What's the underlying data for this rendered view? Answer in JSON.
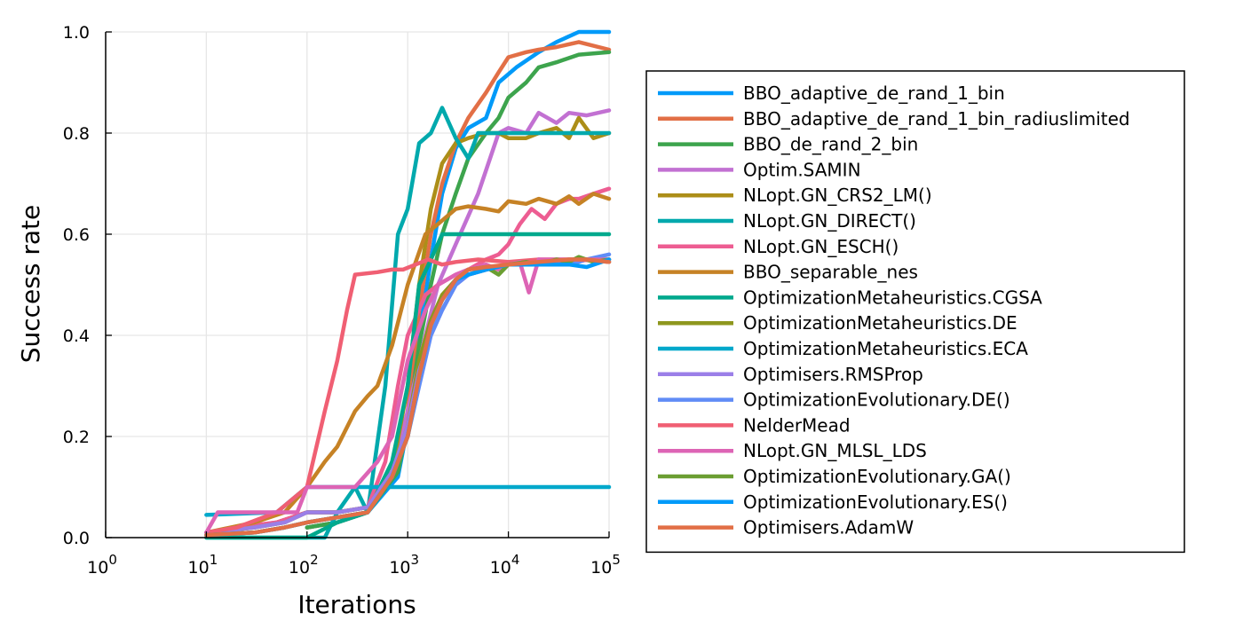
{
  "chart_data": {
    "type": "line",
    "xlabel": "Iterations",
    "ylabel": "Success rate",
    "x_scale": "log10",
    "xlim": [
      1,
      100000
    ],
    "ylim": [
      0,
      1
    ],
    "x_ticks": [
      {
        "base": "10",
        "exp": "0"
      },
      {
        "base": "10",
        "exp": "1"
      },
      {
        "base": "10",
        "exp": "2"
      },
      {
        "base": "10",
        "exp": "3"
      },
      {
        "base": "10",
        "exp": "4"
      },
      {
        "base": "10",
        "exp": "5"
      }
    ],
    "y_ticks": [
      "0.0",
      "0.2",
      "0.4",
      "0.6",
      "0.8",
      "1.0"
    ],
    "grid": true,
    "legend_position": "right",
    "series": [
      {
        "name": "BBO_adaptive_de_rand_1_bin",
        "color": "#009af9",
        "x": [
          100,
          200,
          400,
          800,
          1000,
          1300,
          1700,
          2200,
          3000,
          4000,
          6000,
          8000,
          12000,
          20000,
          30000,
          50000,
          100000
        ],
        "y": [
          0.02,
          0.03,
          0.05,
          0.12,
          0.22,
          0.4,
          0.55,
          0.68,
          0.77,
          0.81,
          0.83,
          0.9,
          0.93,
          0.96,
          0.98,
          1.0,
          1.0
        ]
      },
      {
        "name": "BBO_adaptive_de_rand_1_bin_radiuslimited",
        "color": "#e26f46",
        "x": [
          100,
          200,
          400,
          800,
          1000,
          1300,
          1700,
          2200,
          3000,
          4000,
          6000,
          8000,
          10000,
          15000,
          20000,
          30000,
          50000,
          100000
        ],
        "y": [
          0.02,
          0.03,
          0.05,
          0.15,
          0.25,
          0.45,
          0.6,
          0.7,
          0.78,
          0.83,
          0.88,
          0.92,
          0.95,
          0.96,
          0.965,
          0.97,
          0.98,
          0.965
        ]
      },
      {
        "name": "BBO_de_rand_2_bin",
        "color": "#3da44d",
        "x": [
          100,
          200,
          400,
          800,
          1000,
          1300,
          1700,
          2200,
          3000,
          4000,
          6000,
          8000,
          10000,
          15000,
          20000,
          30000,
          50000,
          100000
        ],
        "y": [
          0.02,
          0.03,
          0.05,
          0.13,
          0.22,
          0.38,
          0.5,
          0.6,
          0.68,
          0.75,
          0.8,
          0.83,
          0.87,
          0.9,
          0.93,
          0.94,
          0.955,
          0.96
        ]
      },
      {
        "name": "Optim.SAMIN",
        "color": "#c271d2",
        "x": [
          10,
          20,
          50,
          100,
          200,
          400,
          700,
          1000,
          1500,
          2000,
          3000,
          5000,
          8000,
          10000,
          15000,
          20000,
          30000,
          40000,
          60000,
          100000
        ],
        "y": [
          0.01,
          0.02,
          0.03,
          0.05,
          0.05,
          0.06,
          0.13,
          0.25,
          0.4,
          0.5,
          0.58,
          0.68,
          0.8,
          0.81,
          0.8,
          0.84,
          0.82,
          0.84,
          0.835,
          0.845
        ]
      },
      {
        "name": "NLopt.GN_CRS2_LM()",
        "color": "#ac8e18",
        "x": [
          10,
          30,
          50,
          100,
          200,
          400,
          700,
          1000,
          1300,
          1700,
          2200,
          3000,
          4000,
          6000,
          8000,
          10000,
          15000,
          20000,
          30000,
          40000,
          50000,
          70000,
          100000
        ],
        "y": [
          0.01,
          0.02,
          0.03,
          0.05,
          0.05,
          0.06,
          0.13,
          0.3,
          0.5,
          0.65,
          0.74,
          0.78,
          0.79,
          0.8,
          0.8,
          0.79,
          0.79,
          0.8,
          0.81,
          0.79,
          0.83,
          0.79,
          0.8
        ]
      },
      {
        "name": "NLopt.GN_DIRECT()",
        "color": "#00a9ad",
        "x": [
          10,
          100,
          150,
          200,
          300,
          400,
          600,
          800,
          1000,
          1300,
          1700,
          2200,
          3000,
          4000,
          5000,
          7000,
          100000
        ],
        "y": [
          0,
          0,
          0,
          0.05,
          0.1,
          0.05,
          0.3,
          0.6,
          0.65,
          0.78,
          0.8,
          0.85,
          0.79,
          0.75,
          0.8,
          0.8,
          0.8
        ]
      },
      {
        "name": "NLopt.GN_ESCH()",
        "color": "#ed5d92",
        "x": [
          10,
          20,
          50,
          100,
          200,
          400,
          600,
          800,
          1000,
          1500,
          2000,
          3000,
          4000,
          6000,
          8000,
          10000,
          13000,
          17000,
          23000,
          30000,
          40000,
          50000,
          70000,
          100000
        ],
        "y": [
          0.01,
          0.02,
          0.03,
          0.05,
          0.05,
          0.06,
          0.15,
          0.3,
          0.4,
          0.48,
          0.5,
          0.52,
          0.53,
          0.55,
          0.56,
          0.58,
          0.62,
          0.65,
          0.63,
          0.66,
          0.67,
          0.67,
          0.68,
          0.69
        ]
      },
      {
        "name": "BBO_separable_nes",
        "color": "#c68225",
        "x": [
          10,
          30,
          60,
          100,
          150,
          200,
          300,
          400,
          500,
          700,
          1000,
          1500,
          2000,
          3000,
          4000,
          6000,
          8000,
          10000,
          15000,
          20000,
          30000,
          40000,
          50000,
          70000,
          100000
        ],
        "y": [
          0.01,
          0.03,
          0.05,
          0.1,
          0.15,
          0.18,
          0.25,
          0.28,
          0.3,
          0.38,
          0.5,
          0.6,
          0.62,
          0.65,
          0.655,
          0.65,
          0.645,
          0.665,
          0.66,
          0.67,
          0.66,
          0.675,
          0.66,
          0.68,
          0.67
        ]
      },
      {
        "name": "OptimizationMetaheuristics.CGSA",
        "color": "#00a98d",
        "x": [
          10,
          100,
          200,
          400,
          700,
          1000,
          1300,
          1700,
          2200,
          3000,
          100000
        ],
        "y": [
          0,
          0,
          0.03,
          0.05,
          0.15,
          0.3,
          0.5,
          0.55,
          0.6,
          0.6,
          0.6
        ]
      },
      {
        "name": "OptimizationMetaheuristics.DE",
        "color": "#8e971e",
        "x": [
          10,
          30,
          60,
          100,
          200,
          400,
          700,
          1000,
          1300,
          1700,
          2200,
          3000,
          4000,
          6000,
          10000,
          20000,
          40000,
          60000,
          100000
        ],
        "y": [
          0.01,
          0.02,
          0.03,
          0.05,
          0.05,
          0.06,
          0.13,
          0.22,
          0.35,
          0.43,
          0.48,
          0.51,
          0.52,
          0.53,
          0.54,
          0.545,
          0.55,
          0.55,
          0.545
        ]
      },
      {
        "name": "OptimizationMetaheuristics.ECA",
        "color": "#00a8cb",
        "x": [
          10,
          50,
          100,
          200,
          300,
          400,
          500,
          600,
          1000,
          100000
        ],
        "y": [
          0.045,
          0.05,
          0.1,
          0.1,
          0.1,
          0.1,
          0.1,
          0.1,
          0.1,
          0.1
        ]
      },
      {
        "name": "Optimisers.RMSProp",
        "color": "#9b7fe8",
        "x": [
          10,
          30,
          60,
          100,
          200,
          400,
          700,
          1000,
          1300,
          1700,
          2200,
          3000,
          4000,
          6000,
          10000,
          20000,
          40000,
          60000,
          100000
        ],
        "y": [
          0.01,
          0.02,
          0.03,
          0.05,
          0.05,
          0.06,
          0.13,
          0.22,
          0.33,
          0.4,
          0.45,
          0.5,
          0.52,
          0.53,
          0.54,
          0.55,
          0.54,
          0.55,
          0.55
        ]
      },
      {
        "name": "OptimizationEvolutionary.DE()",
        "color": "#608cf6",
        "x": [
          10,
          30,
          60,
          100,
          200,
          400,
          700,
          1000,
          1300,
          1700,
          2200,
          3000,
          4000,
          6000,
          10000,
          20000,
          40000,
          60000,
          100000
        ],
        "y": [
          0.005,
          0.01,
          0.02,
          0.03,
          0.04,
          0.05,
          0.12,
          0.2,
          0.3,
          0.4,
          0.45,
          0.5,
          0.52,
          0.53,
          0.54,
          0.545,
          0.54,
          0.55,
          0.56
        ]
      },
      {
        "name": "NelderMead",
        "color": "#f05f73",
        "x": [
          10,
          20,
          50,
          100,
          150,
          200,
          250,
          300,
          500,
          700,
          900,
          1200,
          1600,
          2200,
          3000,
          5000,
          10000,
          20000,
          50000,
          100000
        ],
        "y": [
          0.01,
          0.02,
          0.05,
          0.1,
          0.25,
          0.35,
          0.45,
          0.52,
          0.525,
          0.53,
          0.53,
          0.54,
          0.55,
          0.54,
          0.545,
          0.55,
          0.545,
          0.55,
          0.55,
          0.545
        ]
      },
      {
        "name": "NLopt.GN_MLSL_LDS",
        "color": "#dd64b5",
        "x": [
          10,
          13,
          20,
          40,
          60,
          80,
          100,
          150,
          200,
          300,
          500,
          700,
          1000,
          1500,
          2000,
          3000,
          4000,
          6000,
          8000,
          10000,
          13000,
          16000,
          20000,
          30000,
          50000,
          100000
        ],
        "y": [
          0.01,
          0.05,
          0.05,
          0.05,
          0.05,
          0.05,
          0.1,
          0.1,
          0.1,
          0.1,
          0.15,
          0.2,
          0.35,
          0.45,
          0.5,
          0.52,
          0.53,
          0.54,
          0.53,
          0.54,
          0.545,
          0.485,
          0.55,
          0.55,
          0.55,
          0.55
        ]
      },
      {
        "name": "OptimizationEvolutionary.GA()",
        "color": "#6b9e32",
        "x": [
          10,
          30,
          60,
          100,
          200,
          400,
          700,
          1000,
          1300,
          1700,
          2200,
          3000,
          4000,
          6000,
          8000,
          10000,
          15000,
          20000,
          30000,
          40000,
          50000,
          70000,
          100000
        ],
        "y": [
          0.005,
          0.01,
          0.02,
          0.03,
          0.04,
          0.05,
          0.12,
          0.2,
          0.32,
          0.42,
          0.47,
          0.51,
          0.53,
          0.535,
          0.52,
          0.54,
          0.545,
          0.54,
          0.55,
          0.545,
          0.555,
          0.545,
          0.55
        ]
      },
      {
        "name": "OptimizationEvolutionary.ES()",
        "color": "#009af9",
        "x": [
          10,
          30,
          60,
          100,
          200,
          400,
          700,
          1000,
          1300,
          1700,
          2200,
          3000,
          4000,
          6000,
          10000,
          20000,
          40000,
          60000,
          100000
        ],
        "y": [
          0.005,
          0.01,
          0.02,
          0.03,
          0.04,
          0.05,
          0.12,
          0.2,
          0.32,
          0.42,
          0.47,
          0.51,
          0.52,
          0.53,
          0.54,
          0.54,
          0.54,
          0.535,
          0.55
        ]
      },
      {
        "name": "Optimisers.AdamW",
        "color": "#e26f46",
        "x": [
          10,
          30,
          60,
          100,
          200,
          400,
          700,
          1000,
          1300,
          1700,
          2200,
          3000,
          4000,
          6000,
          10000,
          20000,
          40000,
          60000,
          100000
        ],
        "y": [
          0.005,
          0.01,
          0.02,
          0.03,
          0.04,
          0.05,
          0.12,
          0.2,
          0.32,
          0.42,
          0.47,
          0.51,
          0.53,
          0.535,
          0.54,
          0.545,
          0.55,
          0.55,
          0.545
        ]
      }
    ]
  }
}
